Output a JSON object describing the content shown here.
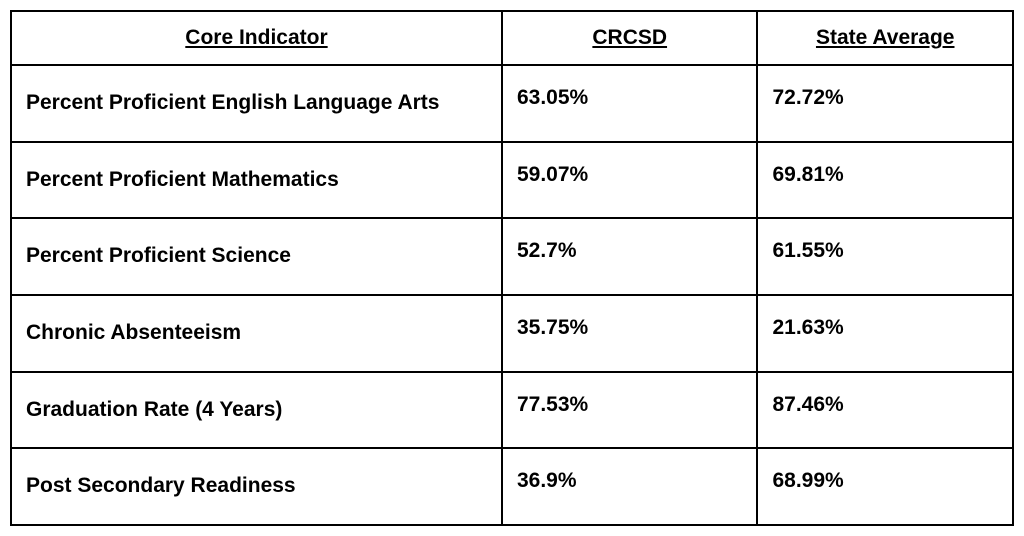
{
  "table": {
    "columns": [
      {
        "label": "Core Indicator"
      },
      {
        "label": "CRCSD"
      },
      {
        "label": "State Average"
      }
    ],
    "rows": [
      {
        "indicator": "Percent Proficient English Language Arts",
        "crcsd": "63.05%",
        "state": "72.72%"
      },
      {
        "indicator": "Percent Proficient Mathematics",
        "crcsd": "59.07%",
        "state": "69.81%"
      },
      {
        "indicator": "Percent Proficient Science",
        "crcsd": "52.7%",
        "state": "61.55%"
      },
      {
        "indicator": "Chronic Absenteeism",
        "crcsd": "35.75%",
        "state": "21.63%"
      },
      {
        "indicator": "Graduation Rate (4 Years)",
        "crcsd": "77.53%",
        "state": "87.46%"
      },
      {
        "indicator": "Post Secondary Readiness",
        "crcsd": "36.9%",
        "state": "68.99%"
      }
    ],
    "styling": {
      "border_color": "#000000",
      "border_width": 2,
      "background_color": "#ffffff",
      "text_color": "#000000",
      "header_font_size": 21,
      "cell_font_size": 21,
      "font_weight": 700,
      "header_underline": true,
      "column_widths_pct": [
        49,
        25.5,
        25.5
      ]
    }
  }
}
